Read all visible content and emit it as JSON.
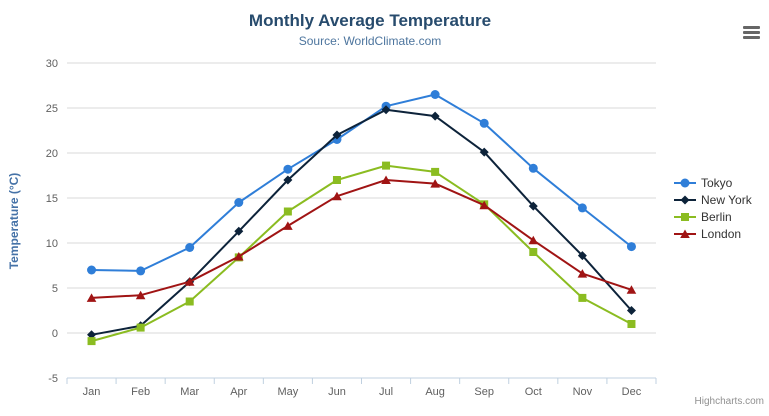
{
  "chart_data": {
    "type": "line",
    "title": "Monthly Average Temperature",
    "subtitle": "Source: WorldClimate.com",
    "categories": [
      "Jan",
      "Feb",
      "Mar",
      "Apr",
      "May",
      "Jun",
      "Jul",
      "Aug",
      "Sep",
      "Oct",
      "Nov",
      "Dec"
    ],
    "xlabel": "",
    "ylabel": "Temperature (°C)",
    "ylim": [
      -5,
      30
    ],
    "ytick": 5,
    "grid": true,
    "legend_position": "right",
    "series": [
      {
        "name": "Tokyo",
        "color": "#2f7ed8",
        "marker": "circle",
        "values": [
          7.0,
          6.9,
          9.5,
          14.5,
          18.2,
          21.5,
          25.2,
          26.5,
          23.3,
          18.3,
          13.9,
          9.6
        ]
      },
      {
        "name": "New York",
        "color": "#0d233a",
        "marker": "diamond",
        "values": [
          -0.2,
          0.8,
          5.7,
          11.3,
          17.0,
          22.0,
          24.8,
          24.1,
          20.1,
          14.1,
          8.6,
          2.5
        ]
      },
      {
        "name": "Berlin",
        "color": "#8bbc21",
        "marker": "square",
        "values": [
          -0.9,
          0.6,
          3.5,
          8.4,
          13.5,
          17.0,
          18.6,
          17.9,
          14.3,
          9.0,
          3.9,
          1.0
        ]
      },
      {
        "name": "London",
        "color": "#a01414",
        "marker": "triangle",
        "values": [
          3.9,
          4.2,
          5.7,
          8.5,
          11.9,
          15.2,
          17.0,
          16.6,
          14.2,
          10.3,
          6.6,
          4.8
        ]
      }
    ],
    "credits": "Highcharts.com"
  },
  "icons": {
    "context_menu": "hamburger-menu-icon"
  },
  "colors": {
    "title": "#274b6d",
    "subtitle": "#4d759e",
    "axis_title": "#4572a7",
    "axis_labels": "#606060",
    "gridline": "#d8d8d8",
    "axis_line": "#c0d0e0",
    "legend_text": "#333333",
    "credits": "#909090"
  }
}
